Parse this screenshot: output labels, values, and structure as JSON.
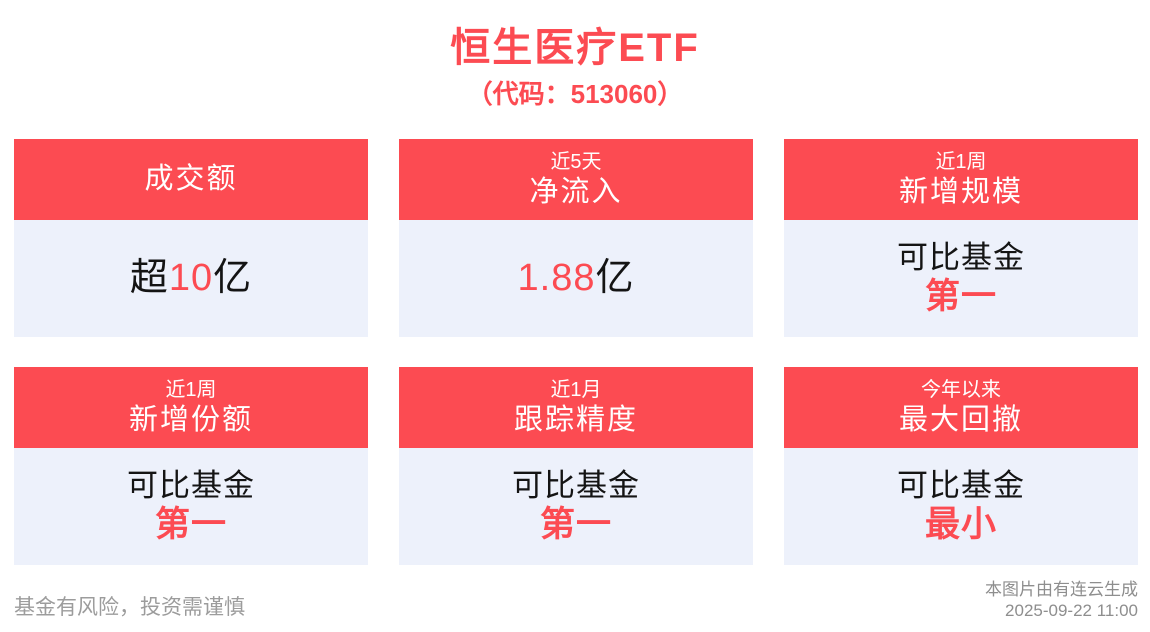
{
  "page": {
    "title": "恒生医疗ETF",
    "subtitle": "（代码：513060）"
  },
  "colors": {
    "accent_red": "#FC4B52",
    "card_body_bg": "#EDF1FB",
    "text_black": "#141414",
    "footer_gray": "#9C9C9C"
  },
  "cards": [
    {
      "period": "",
      "metric": "成交额",
      "lines": [
        [
          {
            "t": "超",
            "red": false
          },
          {
            "t": "10",
            "red": true
          },
          {
            "t": "亿",
            "red": false
          }
        ]
      ]
    },
    {
      "period": "近5天",
      "metric": "净流入",
      "lines": [
        [
          {
            "t": "1.88",
            "red": true
          },
          {
            "t": "亿",
            "red": false
          }
        ]
      ]
    },
    {
      "period": "近1周",
      "metric": "新增规模",
      "lines": [
        [
          {
            "t": "可比基金",
            "red": false
          }
        ],
        [
          {
            "t": "第一",
            "red": true
          }
        ]
      ]
    },
    {
      "period": "近1周",
      "metric": "新增份额",
      "lines": [
        [
          {
            "t": "可比基金",
            "red": false
          }
        ],
        [
          {
            "t": "第一",
            "red": true
          }
        ]
      ]
    },
    {
      "period": "近1月",
      "metric": "跟踪精度",
      "lines": [
        [
          {
            "t": "可比基金",
            "red": false
          }
        ],
        [
          {
            "t": "第一",
            "red": true
          }
        ]
      ]
    },
    {
      "period": "今年以来",
      "metric": "最大回撤",
      "lines": [
        [
          {
            "t": "可比基金",
            "red": false
          }
        ],
        [
          {
            "t": "最小",
            "red": true
          }
        ]
      ]
    }
  ],
  "footer": {
    "disclaimer": "基金有风险，投资需谨慎",
    "credit_line1": "本图片由有连云生成",
    "credit_line2": "2025-09-22 11:00"
  }
}
